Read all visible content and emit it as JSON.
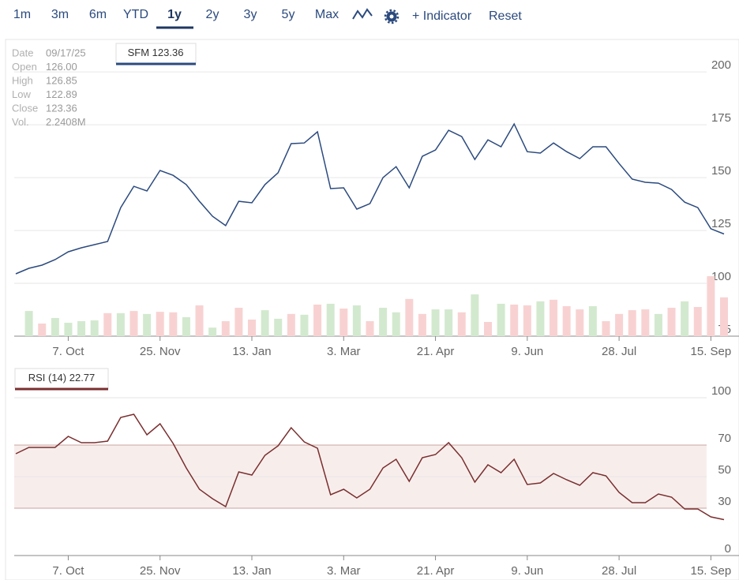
{
  "toolbar": {
    "ranges": [
      "1m",
      "3m",
      "6m",
      "YTD",
      "1y",
      "2y",
      "3y",
      "5y",
      "Max"
    ],
    "indicator": "+ Indicator",
    "reset": "Reset"
  },
  "ohlc": {
    "labels": [
      "Date",
      "Open",
      "High",
      "Low",
      "Close",
      "Vol."
    ],
    "values": [
      "09/17/25",
      "126.00",
      "126.85",
      "122.89",
      "123.36",
      "2.2408M"
    ]
  },
  "chart_data": [
    {
      "type": "line",
      "categories": [
        null,
        null,
        null,
        null,
        "7. Oct",
        null,
        null,
        null,
        null,
        null,
        null,
        "25. Nov",
        null,
        null,
        null,
        null,
        null,
        null,
        "13. Jan",
        null,
        null,
        null,
        null,
        null,
        null,
        "3. Mar",
        null,
        null,
        null,
        null,
        null,
        null,
        "21. Apr",
        null,
        null,
        null,
        null,
        null,
        null,
        "9. Jun",
        null,
        null,
        null,
        null,
        null,
        null,
        "28. Jul",
        null,
        null,
        null,
        null,
        null,
        null,
        "15. Sep",
        null
      ],
      "series": [
        {
          "name": "SFM",
          "color": "#2b4a7e",
          "values": [
            104.5,
            107.1,
            108.6,
            111.2,
            114.9,
            116.8,
            118.3,
            119.8,
            135.8,
            145.9,
            143.7,
            153.4,
            151.1,
            146.7,
            138.8,
            131.7,
            127.3,
            138.8,
            138.1,
            146.7,
            152.3,
            166.1,
            166.4,
            171.7,
            144.8,
            145.2,
            135.1,
            137.7,
            150,
            155.2,
            145.2,
            160.1,
            163.1,
            172.4,
            169.4,
            158.6,
            167.9,
            164.6,
            175.4,
            162.3,
            161.6,
            166.4,
            162.3,
            159,
            164.6,
            164.6,
            156.7,
            149.3,
            147.8,
            147.4,
            144.4,
            138.4,
            135.8,
            125.8,
            123.36
          ]
        }
      ],
      "volume": {
        "values": [
          null,
          0.94,
          0.47,
          0.68,
          0.5,
          0.56,
          0.59,
          0.86,
          0.86,
          0.94,
          0.83,
          0.91,
          0.89,
          0.71,
          1.15,
          0.32,
          0.56,
          1.06,
          0.62,
          0.97,
          0.65,
          0.83,
          0.8,
          1.18,
          1.21,
          1.03,
          1.15,
          0.56,
          1.06,
          0.89,
          1.39,
          0.83,
          1.0,
          1.0,
          0.89,
          1.56,
          0.53,
          1.21,
          1.18,
          1.15,
          1.3,
          1.36,
          1.12,
          1.0,
          1.12,
          0.56,
          0.83,
          0.97,
          1.0,
          0.83,
          1.06,
          1.3,
          1.09,
          2.24,
          1.45
        ],
        "colors": [
          null,
          "#d3e9cf",
          "#f8d2d2",
          "#d3e9cf",
          "#d3e9cf",
          "#d3e9cf",
          "#d3e9cf",
          "#f8d2d2",
          "#d3e9cf",
          "#f8d2d2",
          "#d3e9cf",
          "#f8d2d2",
          "#f8d2d2",
          "#d3e9cf",
          "#f8d2d2",
          "#d3e9cf",
          "#f8d2d2",
          "#f8d2d2",
          "#f8d2d2",
          "#d3e9cf",
          "#d3e9cf",
          "#f8d2d2",
          "#d3e9cf",
          "#f8d2d2",
          "#d3e9cf",
          "#f8d2d2",
          "#d3e9cf",
          "#f8d2d2",
          "#d3e9cf",
          "#d3e9cf",
          "#f8d2d2",
          "#f8d2d2",
          "#d3e9cf",
          "#d3e9cf",
          "#f8d2d2",
          "#d3e9cf",
          "#f8d2d2",
          "#d3e9cf",
          "#f8d2d2",
          "#f8d2d2",
          "#d3e9cf",
          "#f8d2d2",
          "#f8d2d2",
          "#f8d2d2",
          "#d3e9cf",
          "#f8d2d2",
          "#f8d2d2",
          "#f8d2d2",
          "#f8d2d2",
          "#d3e9cf",
          "#f8d2d2",
          "#d3e9cf",
          "#f8d2d2",
          "#f8d2d2",
          "#f8d2d2"
        ]
      },
      "ylim": [
        75,
        215
      ],
      "yticks": [
        75,
        100,
        125,
        150,
        175,
        200
      ],
      "grid": true
    },
    {
      "type": "line",
      "categories": [
        null,
        null,
        null,
        null,
        "7. Oct",
        null,
        null,
        null,
        null,
        null,
        null,
        "25. Nov",
        null,
        null,
        null,
        null,
        null,
        null,
        "13. Jan",
        null,
        null,
        null,
        null,
        null,
        null,
        "3. Mar",
        null,
        null,
        null,
        null,
        null,
        null,
        "21. Apr",
        null,
        null,
        null,
        null,
        null,
        null,
        "9. Jun",
        null,
        null,
        null,
        null,
        null,
        null,
        "28. Jul",
        null,
        null,
        null,
        null,
        null,
        null,
        "15. Sep",
        null
      ],
      "series": [
        {
          "name": "RSI (14)",
          "color": "#7a2e2e",
          "values": [
            64.5,
            68.5,
            68.5,
            68.5,
            75.5,
            71.5,
            71.5,
            72.5,
            87.5,
            89.5,
            76.5,
            83.5,
            71,
            55.5,
            42,
            36,
            31,
            53,
            51,
            63.5,
            69.5,
            81,
            72,
            68,
            38.5,
            42,
            36.5,
            42,
            55.5,
            61,
            47,
            62,
            64,
            71.5,
            62,
            46.5,
            57.5,
            52.5,
            61,
            45,
            46,
            52,
            48,
            44.5,
            52.5,
            50.5,
            40,
            33.5,
            33.5,
            39,
            37,
            29.5,
            29.5,
            24.5,
            22.77
          ]
        }
      ],
      "band": [
        30,
        70
      ],
      "band_color": "#f7eeec",
      "ylim": [
        0,
        117
      ],
      "yticks": [
        0,
        30,
        50,
        70,
        100
      ],
      "grid": true
    }
  ]
}
